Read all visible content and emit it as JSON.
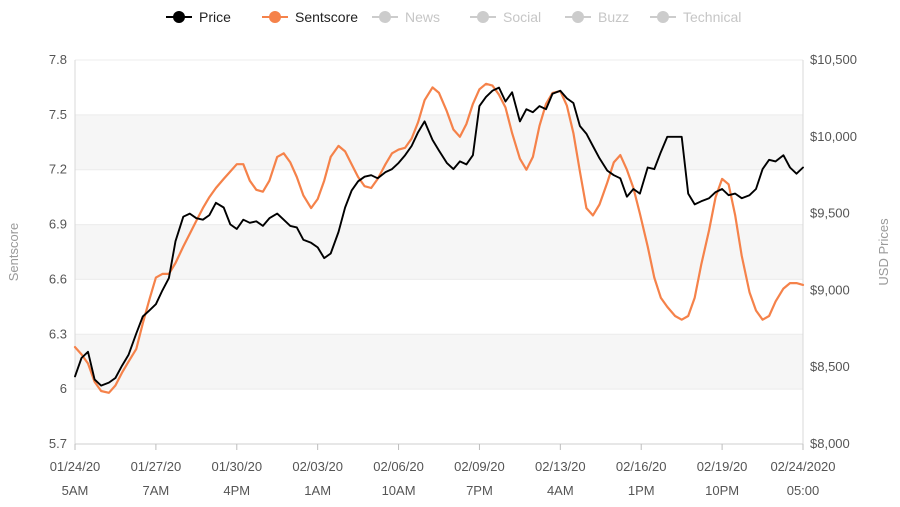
{
  "legend": [
    {
      "label": "Price",
      "color": "#000000",
      "active": true
    },
    {
      "label": "Sentscore",
      "color": "#f5824a",
      "active": true
    },
    {
      "label": "News",
      "color": "#c8c8c8",
      "active": false
    },
    {
      "label": "Social",
      "color": "#c8c8c8",
      "active": false
    },
    {
      "label": "Buzz",
      "color": "#c8c8c8",
      "active": false
    },
    {
      "label": "Technical",
      "color": "#c8c8c8",
      "active": false
    }
  ],
  "axes": {
    "left_title": "Sentscore",
    "right_title": "USD Prices",
    "left_ticks": [
      "7.8",
      "7.5",
      "7.2",
      "6.9",
      "6.6",
      "6.3",
      "6",
      "5.7"
    ],
    "right_ticks": [
      "$10,500",
      "$10,000",
      "$9,500",
      "$9,000",
      "$8,500",
      "$8,000"
    ],
    "x_ticks": [
      {
        "date": "01/24/20",
        "time": "5AM"
      },
      {
        "date": "01/27/20",
        "time": "7AM"
      },
      {
        "date": "01/30/20",
        "time": "4PM"
      },
      {
        "date": "02/03/20",
        "time": "1AM"
      },
      {
        "date": "02/06/20",
        "time": "10AM"
      },
      {
        "date": "02/09/20",
        "time": "7PM"
      },
      {
        "date": "02/13/20",
        "time": "4AM"
      },
      {
        "date": "02/16/20",
        "time": "1PM"
      },
      {
        "date": "02/19/20",
        "time": "10PM"
      },
      {
        "date": "02/24/2020",
        "time": "05:00"
      }
    ]
  },
  "chart_data": {
    "type": "line",
    "x_range": [
      "01/24/20 5AM",
      "02/24/2020 05:00"
    ],
    "left_ylim": [
      5.7,
      7.8
    ],
    "right_ylim": [
      8000,
      10500
    ],
    "grid": true,
    "legend_position": "top-center",
    "series": [
      {
        "name": "Price",
        "axis": "right",
        "color": "#000000",
        "points": [
          [
            0,
            8440
          ],
          [
            0.5,
            8560
          ],
          [
            1,
            8600
          ],
          [
            1.5,
            8420
          ],
          [
            2,
            8380
          ],
          [
            2.6,
            8400
          ],
          [
            3.1,
            8430
          ],
          [
            3.6,
            8510
          ],
          [
            4.1,
            8580
          ],
          [
            4.7,
            8720
          ],
          [
            5.2,
            8830
          ],
          [
            5.7,
            8870
          ],
          [
            6.2,
            8910
          ],
          [
            6.7,
            9000
          ],
          [
            7.2,
            9080
          ],
          [
            7.7,
            9320
          ],
          [
            8.3,
            9480
          ],
          [
            8.8,
            9500
          ],
          [
            9.3,
            9470
          ],
          [
            9.8,
            9460
          ],
          [
            10.3,
            9490
          ],
          [
            10.8,
            9570
          ],
          [
            11.4,
            9540
          ],
          [
            11.9,
            9430
          ],
          [
            12.4,
            9400
          ],
          [
            12.9,
            9460
          ],
          [
            13.4,
            9440
          ],
          [
            13.9,
            9450
          ],
          [
            14.4,
            9420
          ],
          [
            14.9,
            9470
          ],
          [
            15.5,
            9500
          ],
          [
            16,
            9460
          ],
          [
            16.5,
            9420
          ],
          [
            17,
            9410
          ],
          [
            17.5,
            9330
          ],
          [
            18.1,
            9310
          ],
          [
            18.6,
            9280
          ],
          [
            19.1,
            9210
          ],
          [
            19.6,
            9240
          ],
          [
            20.2,
            9380
          ],
          [
            20.7,
            9540
          ],
          [
            21.2,
            9650
          ],
          [
            21.7,
            9710
          ],
          [
            22.2,
            9740
          ],
          [
            22.7,
            9750
          ],
          [
            23.2,
            9730
          ],
          [
            23.8,
            9770
          ],
          [
            24.3,
            9790
          ],
          [
            24.8,
            9830
          ],
          [
            25.3,
            9880
          ],
          [
            25.8,
            9940
          ],
          [
            26.3,
            10030
          ],
          [
            26.8,
            10100
          ],
          [
            27.4,
            9980
          ],
          [
            27.9,
            9910
          ],
          [
            28.5,
            9830
          ],
          [
            29,
            9790
          ],
          [
            29.5,
            9840
          ],
          [
            30,
            9820
          ],
          [
            30.5,
            9880
          ],
          [
            31,
            10200
          ],
          [
            31.5,
            10260
          ],
          [
            32,
            10300
          ],
          [
            32.5,
            10320
          ],
          [
            33,
            10230
          ],
          [
            33.5,
            10290
          ],
          [
            34.1,
            10100
          ],
          [
            34.6,
            10180
          ],
          [
            35.1,
            10160
          ],
          [
            35.6,
            10200
          ],
          [
            36.1,
            10180
          ],
          [
            36.6,
            10280
          ],
          [
            37.2,
            10300
          ],
          [
            37.7,
            10250
          ],
          [
            38.2,
            10220
          ],
          [
            38.7,
            10070
          ],
          [
            39.2,
            10020
          ],
          [
            39.7,
            9940
          ],
          [
            40.2,
            9860
          ],
          [
            40.8,
            9780
          ],
          [
            41.3,
            9750
          ],
          [
            41.8,
            9730
          ],
          [
            42.3,
            9610
          ],
          [
            42.8,
            9660
          ],
          [
            43.3,
            9630
          ],
          [
            43.9,
            9800
          ],
          [
            44.4,
            9790
          ],
          [
            44.9,
            9900
          ],
          [
            45.4,
            10000
          ],
          [
            46,
            10000
          ],
          [
            46.5,
            10000
          ],
          [
            47,
            9630
          ],
          [
            47.5,
            9560
          ],
          [
            48,
            9580
          ],
          [
            48.6,
            9600
          ],
          [
            49.1,
            9640
          ],
          [
            49.6,
            9660
          ],
          [
            50.1,
            9620
          ],
          [
            50.6,
            9630
          ],
          [
            51.1,
            9600
          ],
          [
            51.7,
            9620
          ],
          [
            52.2,
            9660
          ],
          [
            52.7,
            9790
          ],
          [
            53.2,
            9850
          ],
          [
            53.7,
            9840
          ],
          [
            54.3,
            9880
          ],
          [
            54.8,
            9800
          ],
          [
            55.3,
            9760
          ],
          [
            55.8,
            9800
          ]
        ]
      },
      {
        "name": "Sentscore",
        "axis": "left",
        "color": "#f5824a",
        "points": [
          [
            0,
            6.23
          ],
          [
            0.5,
            6.19
          ],
          [
            1,
            6.14
          ],
          [
            1.5,
            6.04
          ],
          [
            2,
            5.99
          ],
          [
            2.6,
            5.98
          ],
          [
            3.1,
            6.02
          ],
          [
            3.6,
            6.09
          ],
          [
            4.1,
            6.15
          ],
          [
            4.7,
            6.22
          ],
          [
            5.2,
            6.36
          ],
          [
            5.7,
            6.49
          ],
          [
            6.2,
            6.61
          ],
          [
            6.7,
            6.63
          ],
          [
            7.2,
            6.63
          ],
          [
            7.7,
            6.69
          ],
          [
            8.3,
            6.78
          ],
          [
            8.8,
            6.85
          ],
          [
            9.3,
            6.92
          ],
          [
            9.8,
            6.99
          ],
          [
            10.3,
            7.05
          ],
          [
            10.8,
            7.1
          ],
          [
            11.4,
            7.15
          ],
          [
            11.9,
            7.19
          ],
          [
            12.4,
            7.23
          ],
          [
            12.9,
            7.23
          ],
          [
            13.4,
            7.14
          ],
          [
            13.9,
            7.09
          ],
          [
            14.4,
            7.08
          ],
          [
            14.9,
            7.14
          ],
          [
            15.5,
            7.27
          ],
          [
            16,
            7.29
          ],
          [
            16.5,
            7.24
          ],
          [
            17,
            7.16
          ],
          [
            17.5,
            7.06
          ],
          [
            18.1,
            6.99
          ],
          [
            18.6,
            7.04
          ],
          [
            19.1,
            7.14
          ],
          [
            19.6,
            7.27
          ],
          [
            20.2,
            7.33
          ],
          [
            20.7,
            7.3
          ],
          [
            21.2,
            7.23
          ],
          [
            21.7,
            7.16
          ],
          [
            22.2,
            7.11
          ],
          [
            22.7,
            7.1
          ],
          [
            23.2,
            7.15
          ],
          [
            23.8,
            7.23
          ],
          [
            24.3,
            7.29
          ],
          [
            24.8,
            7.31
          ],
          [
            25.3,
            7.32
          ],
          [
            25.8,
            7.37
          ],
          [
            26.3,
            7.46
          ],
          [
            26.8,
            7.58
          ],
          [
            27.4,
            7.65
          ],
          [
            27.9,
            7.62
          ],
          [
            28.5,
            7.52
          ],
          [
            29,
            7.42
          ],
          [
            29.5,
            7.38
          ],
          [
            30,
            7.45
          ],
          [
            30.5,
            7.56
          ],
          [
            31,
            7.64
          ],
          [
            31.5,
            7.67
          ],
          [
            32,
            7.66
          ],
          [
            32.5,
            7.61
          ],
          [
            33,
            7.54
          ],
          [
            33.5,
            7.4
          ],
          [
            34.1,
            7.26
          ],
          [
            34.6,
            7.2
          ],
          [
            35.1,
            7.27
          ],
          [
            35.6,
            7.44
          ],
          [
            36.1,
            7.56
          ],
          [
            36.6,
            7.62
          ],
          [
            37.2,
            7.63
          ],
          [
            37.7,
            7.55
          ],
          [
            38.2,
            7.4
          ],
          [
            38.7,
            7.19
          ],
          [
            39.2,
            6.99
          ],
          [
            39.7,
            6.95
          ],
          [
            40.2,
            7.01
          ],
          [
            40.8,
            7.13
          ],
          [
            41.3,
            7.24
          ],
          [
            41.8,
            7.28
          ],
          [
            42.3,
            7.2
          ],
          [
            42.8,
            7.1
          ],
          [
            43.3,
            6.96
          ],
          [
            43.9,
            6.78
          ],
          [
            44.4,
            6.61
          ],
          [
            44.9,
            6.5
          ],
          [
            45.4,
            6.45
          ],
          [
            46,
            6.4
          ],
          [
            46.5,
            6.38
          ],
          [
            47,
            6.4
          ],
          [
            47.5,
            6.5
          ],
          [
            48,
            6.68
          ],
          [
            48.6,
            6.87
          ],
          [
            49.1,
            7.05
          ],
          [
            49.6,
            7.15
          ],
          [
            50.1,
            7.12
          ],
          [
            50.6,
            6.95
          ],
          [
            51.1,
            6.73
          ],
          [
            51.7,
            6.53
          ],
          [
            52.2,
            6.43
          ],
          [
            52.7,
            6.38
          ],
          [
            53.2,
            6.4
          ],
          [
            53.7,
            6.48
          ],
          [
            54.3,
            6.55
          ],
          [
            54.8,
            6.58
          ],
          [
            55.3,
            6.58
          ],
          [
            55.8,
            6.57
          ]
        ]
      }
    ]
  }
}
